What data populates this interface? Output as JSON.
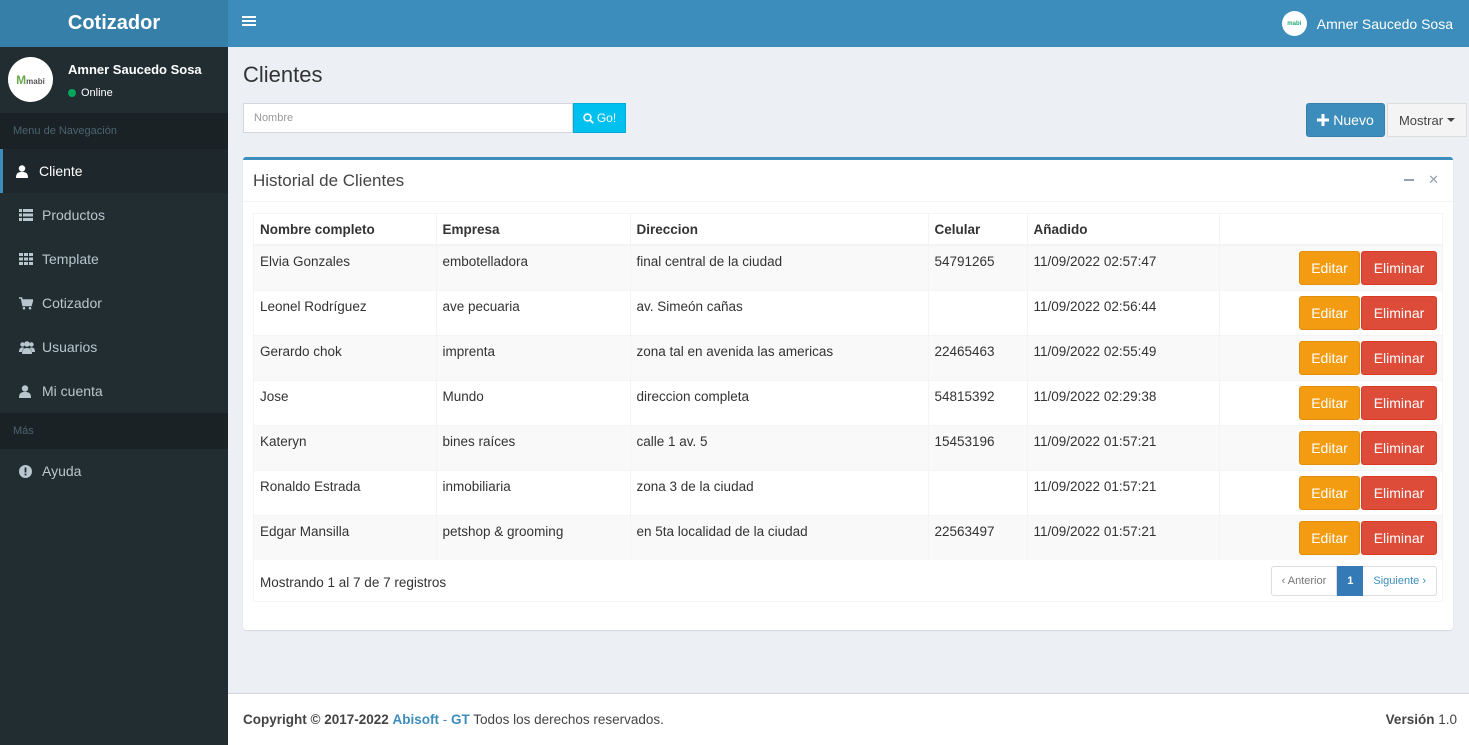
{
  "app": {
    "brand": "Cotizador"
  },
  "topbar": {
    "user_name": "Amner Saucedo Sosa",
    "avatar_text": "mabi"
  },
  "sidebar": {
    "user": {
      "name": "Amner Saucedo Sosa",
      "status": "Online",
      "avatar_text": "mabi"
    },
    "section_nav": "Menu de Navegación",
    "section_more": "Más",
    "items": [
      {
        "label": "Cliente",
        "icon": "user-icon",
        "active": true
      },
      {
        "label": "Productos",
        "icon": "list-icon"
      },
      {
        "label": "Template",
        "icon": "grid-icon"
      },
      {
        "label": "Cotizador",
        "icon": "cart-icon"
      },
      {
        "label": "Usuarios",
        "icon": "users-icon"
      },
      {
        "label": "Mi cuenta",
        "icon": "user-icon"
      }
    ],
    "help": {
      "label": "Ayuda",
      "icon": "exclamation-circle-icon"
    }
  },
  "page": {
    "title": "Clientes",
    "search_placeholder": "Nombre",
    "go_label": "Go!",
    "new_label": "Nuevo",
    "show_label": "Mostrar"
  },
  "box": {
    "title": "Historial de Clientes",
    "columns": [
      "Nombre completo",
      "Empresa",
      "Direccion",
      "Celular",
      "Añadido",
      ""
    ],
    "rows": [
      {
        "nombre": "Elvia Gonzales",
        "empresa": "embotelladora",
        "direccion": "final central de la ciudad",
        "celular": "54791265",
        "anadido": "11/09/2022 02:57:47"
      },
      {
        "nombre": "Leonel Rodríguez",
        "empresa": "ave pecuaria",
        "direccion": "av. Simeón cañas",
        "celular": "",
        "anadido": "11/09/2022 02:56:44"
      },
      {
        "nombre": "Gerardo chok",
        "empresa": "imprenta",
        "direccion": "zona tal en avenida las americas",
        "celular": "22465463",
        "anadido": "11/09/2022 02:55:49"
      },
      {
        "nombre": "Jose",
        "empresa": "Mundo",
        "direccion": "direccion completa",
        "celular": "54815392",
        "anadido": "11/09/2022 02:29:38"
      },
      {
        "nombre": "Kateryn",
        "empresa": "bines raíces",
        "direccion": "calle 1 av. 5",
        "celular": "15453196",
        "anadido": "11/09/2022 01:57:21"
      },
      {
        "nombre": "Ronaldo Estrada",
        "empresa": "inmobiliaria",
        "direccion": "zona 3 de la ciudad",
        "celular": "",
        "anadido": "11/09/2022 01:57:21"
      },
      {
        "nombre": "Edgar Mansilla",
        "empresa": "petshop & grooming",
        "direccion": "en 5ta localidad de la ciudad",
        "celular": "22563497",
        "anadido": "11/09/2022 01:57:21"
      }
    ],
    "edit_label": "Editar",
    "delete_label": "Eliminar",
    "info": "Mostrando 1 al 7 de 7 registros",
    "pagination": {
      "prev": "‹ Anterior",
      "current": "1",
      "next": "Siguiente ›"
    }
  },
  "footer": {
    "copyright": "Copyright © 2017-2022",
    "company": "Abisoft",
    "separator": " - ",
    "company_suffix": "GT",
    "rights": "Todos los derechos reservados.",
    "version_label": "Versión",
    "version": "1.0"
  },
  "colors": {
    "primary": "#3c8dbc",
    "sidebar_bg": "#222d32",
    "warning": "#f39c12",
    "danger": "#dd4b39",
    "info": "#00c0ef"
  }
}
